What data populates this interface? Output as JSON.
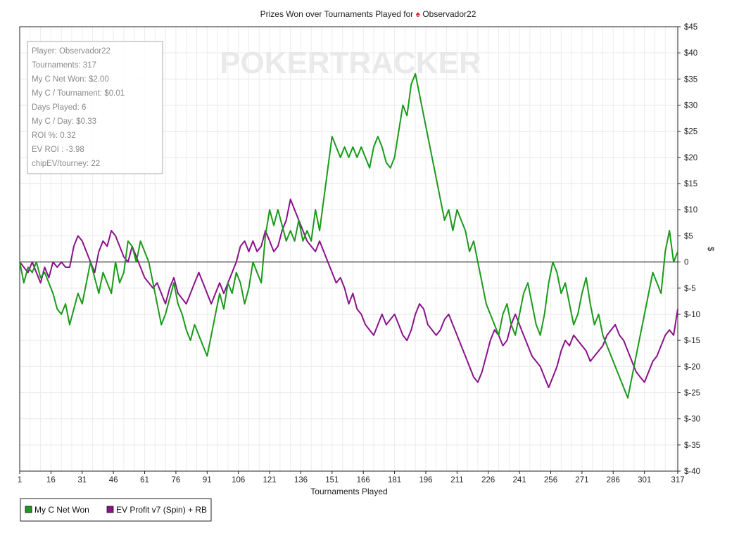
{
  "chart_data": {
    "type": "line",
    "title": "Prizes Won over Tournaments Played for ",
    "title_player": "Observador22",
    "xlabel": "Tournaments Played",
    "ylabel": "$",
    "xlim": [
      1,
      317
    ],
    "ylim": [
      -40,
      45
    ],
    "x_ticks": [
      "1",
      "16",
      "31",
      "46",
      "61",
      "76",
      "91",
      "106",
      "121",
      "136",
      "151",
      "166",
      "181",
      "196",
      "211",
      "226",
      "241",
      "256",
      "271",
      "286",
      "301",
      "317"
    ],
    "y_ticks": [
      "$45",
      "$40",
      "$35",
      "$30",
      "$25",
      "$20",
      "$15",
      "$10",
      "$5",
      "0",
      "$-5",
      "$-10",
      "$-15",
      "$-20",
      "$-25",
      "$-30",
      "$-35",
      "$-40"
    ],
    "grid": true,
    "legend_position": "bottom-left",
    "watermark": "POKERTRACKER",
    "series": [
      {
        "name": "My C Net Won",
        "color": "#1a9a1a",
        "points": [
          [
            1,
            0
          ],
          [
            3,
            -4
          ],
          [
            5,
            -1
          ],
          [
            7,
            -2
          ],
          [
            9,
            0
          ],
          [
            11,
            -3
          ],
          [
            13,
            -2
          ],
          [
            15,
            -4
          ],
          [
            17,
            -6
          ],
          [
            19,
            -9
          ],
          [
            21,
            -10
          ],
          [
            23,
            -8
          ],
          [
            25,
            -12
          ],
          [
            27,
            -9
          ],
          [
            29,
            -6
          ],
          [
            31,
            -8
          ],
          [
            33,
            -4
          ],
          [
            35,
            0
          ],
          [
            37,
            -3
          ],
          [
            39,
            -6
          ],
          [
            41,
            -2
          ],
          [
            43,
            -4
          ],
          [
            45,
            -6
          ],
          [
            47,
            0
          ],
          [
            49,
            -4
          ],
          [
            51,
            -2
          ],
          [
            53,
            4
          ],
          [
            55,
            3
          ],
          [
            57,
            0
          ],
          [
            59,
            4
          ],
          [
            61,
            2
          ],
          [
            63,
            0
          ],
          [
            65,
            -4
          ],
          [
            67,
            -8
          ],
          [
            69,
            -12
          ],
          [
            71,
            -10
          ],
          [
            73,
            -7
          ],
          [
            75,
            -4
          ],
          [
            77,
            -8
          ],
          [
            79,
            -10
          ],
          [
            81,
            -13
          ],
          [
            83,
            -15
          ],
          [
            85,
            -12
          ],
          [
            87,
            -14
          ],
          [
            89,
            -16
          ],
          [
            91,
            -18
          ],
          [
            93,
            -14
          ],
          [
            95,
            -10
          ],
          [
            97,
            -6
          ],
          [
            99,
            -9
          ],
          [
            101,
            -4
          ],
          [
            103,
            -6
          ],
          [
            105,
            -2
          ],
          [
            107,
            -4
          ],
          [
            109,
            -8
          ],
          [
            111,
            -5
          ],
          [
            113,
            0
          ],
          [
            115,
            -2
          ],
          [
            117,
            -4
          ],
          [
            119,
            5
          ],
          [
            121,
            10
          ],
          [
            123,
            7
          ],
          [
            125,
            10
          ],
          [
            127,
            7
          ],
          [
            129,
            4
          ],
          [
            131,
            6
          ],
          [
            133,
            4
          ],
          [
            135,
            8
          ],
          [
            137,
            4
          ],
          [
            139,
            6
          ],
          [
            141,
            4
          ],
          [
            143,
            10
          ],
          [
            145,
            6
          ],
          [
            147,
            12
          ],
          [
            149,
            18
          ],
          [
            151,
            24
          ],
          [
            153,
            22
          ],
          [
            155,
            20
          ],
          [
            157,
            22
          ],
          [
            159,
            20
          ],
          [
            161,
            22
          ],
          [
            163,
            20
          ],
          [
            165,
            22
          ],
          [
            167,
            20
          ],
          [
            169,
            18
          ],
          [
            171,
            22
          ],
          [
            173,
            24
          ],
          [
            175,
            22
          ],
          [
            177,
            19
          ],
          [
            179,
            18
          ],
          [
            181,
            20
          ],
          [
            183,
            25
          ],
          [
            185,
            30
          ],
          [
            187,
            28
          ],
          [
            189,
            34
          ],
          [
            191,
            36
          ],
          [
            193,
            32
          ],
          [
            195,
            28
          ],
          [
            197,
            24
          ],
          [
            199,
            20
          ],
          [
            201,
            16
          ],
          [
            203,
            12
          ],
          [
            205,
            8
          ],
          [
            207,
            10
          ],
          [
            209,
            6
          ],
          [
            211,
            10
          ],
          [
            213,
            8
          ],
          [
            215,
            6
          ],
          [
            217,
            2
          ],
          [
            219,
            4
          ],
          [
            221,
            0
          ],
          [
            223,
            -4
          ],
          [
            225,
            -8
          ],
          [
            227,
            -10
          ],
          [
            229,
            -12
          ],
          [
            231,
            -14
          ],
          [
            233,
            -10
          ],
          [
            235,
            -8
          ],
          [
            237,
            -12
          ],
          [
            239,
            -14
          ],
          [
            241,
            -10
          ],
          [
            243,
            -6
          ],
          [
            245,
            -4
          ],
          [
            247,
            -8
          ],
          [
            249,
            -12
          ],
          [
            251,
            -14
          ],
          [
            253,
            -10
          ],
          [
            255,
            -4
          ],
          [
            257,
            0
          ],
          [
            259,
            -2
          ],
          [
            261,
            -6
          ],
          [
            263,
            -4
          ],
          [
            265,
            -8
          ],
          [
            267,
            -12
          ],
          [
            269,
            -10
          ],
          [
            271,
            -6
          ],
          [
            273,
            -3
          ],
          [
            275,
            -8
          ],
          [
            277,
            -12
          ],
          [
            279,
            -10
          ],
          [
            281,
            -14
          ],
          [
            283,
            -16
          ],
          [
            285,
            -18
          ],
          [
            287,
            -20
          ],
          [
            289,
            -22
          ],
          [
            291,
            -24
          ],
          [
            293,
            -26
          ],
          [
            295,
            -22
          ],
          [
            297,
            -18
          ],
          [
            299,
            -14
          ],
          [
            301,
            -10
          ],
          [
            303,
            -6
          ],
          [
            305,
            -2
          ],
          [
            307,
            -4
          ],
          [
            309,
            -6
          ],
          [
            311,
            2
          ],
          [
            313,
            6
          ],
          [
            315,
            0
          ],
          [
            317,
            2
          ]
        ]
      },
      {
        "name": "EV Profit v7 (Spin) + RB",
        "color": "#8a128a",
        "points": [
          [
            1,
            0
          ],
          [
            3,
            -1
          ],
          [
            5,
            -2
          ],
          [
            7,
            0
          ],
          [
            9,
            -2
          ],
          [
            11,
            -4
          ],
          [
            13,
            -1
          ],
          [
            15,
            -3
          ],
          [
            17,
            0
          ],
          [
            19,
            -1
          ],
          [
            21,
            0
          ],
          [
            23,
            -1
          ],
          [
            25,
            -1
          ],
          [
            27,
            3
          ],
          [
            29,
            5
          ],
          [
            31,
            4
          ],
          [
            33,
            2
          ],
          [
            35,
            0
          ],
          [
            37,
            -2
          ],
          [
            39,
            2
          ],
          [
            41,
            4
          ],
          [
            43,
            3
          ],
          [
            45,
            6
          ],
          [
            47,
            5
          ],
          [
            49,
            3
          ],
          [
            51,
            1
          ],
          [
            53,
            0
          ],
          [
            55,
            3
          ],
          [
            57,
            1
          ],
          [
            59,
            -1
          ],
          [
            61,
            -3
          ],
          [
            63,
            -4
          ],
          [
            65,
            -5
          ],
          [
            67,
            -4
          ],
          [
            69,
            -6
          ],
          [
            71,
            -8
          ],
          [
            73,
            -5
          ],
          [
            75,
            -3
          ],
          [
            77,
            -6
          ],
          [
            79,
            -7
          ],
          [
            81,
            -8
          ],
          [
            83,
            -6
          ],
          [
            85,
            -4
          ],
          [
            87,
            -2
          ],
          [
            89,
            -4
          ],
          [
            91,
            -6
          ],
          [
            93,
            -8
          ],
          [
            95,
            -6
          ],
          [
            97,
            -4
          ],
          [
            99,
            -6
          ],
          [
            101,
            -4
          ],
          [
            103,
            -2
          ],
          [
            105,
            0
          ],
          [
            107,
            3
          ],
          [
            109,
            4
          ],
          [
            111,
            2
          ],
          [
            113,
            4
          ],
          [
            115,
            2
          ],
          [
            117,
            3
          ],
          [
            119,
            6
          ],
          [
            121,
            4
          ],
          [
            123,
            2
          ],
          [
            125,
            3
          ],
          [
            127,
            6
          ],
          [
            129,
            8
          ],
          [
            131,
            12
          ],
          [
            133,
            10
          ],
          [
            135,
            8
          ],
          [
            137,
            6
          ],
          [
            139,
            4
          ],
          [
            141,
            3
          ],
          [
            143,
            2
          ],
          [
            145,
            4
          ],
          [
            147,
            2
          ],
          [
            149,
            0
          ],
          [
            151,
            -2
          ],
          [
            153,
            -4
          ],
          [
            155,
            -3
          ],
          [
            157,
            -5
          ],
          [
            159,
            -8
          ],
          [
            161,
            -6
          ],
          [
            163,
            -9
          ],
          [
            165,
            -10
          ],
          [
            167,
            -12
          ],
          [
            169,
            -13
          ],
          [
            171,
            -14
          ],
          [
            173,
            -12
          ],
          [
            175,
            -10
          ],
          [
            177,
            -12
          ],
          [
            179,
            -11
          ],
          [
            181,
            -10
          ],
          [
            183,
            -12
          ],
          [
            185,
            -14
          ],
          [
            187,
            -15
          ],
          [
            189,
            -13
          ],
          [
            191,
            -10
          ],
          [
            193,
            -8
          ],
          [
            195,
            -9
          ],
          [
            197,
            -12
          ],
          [
            199,
            -13
          ],
          [
            201,
            -14
          ],
          [
            203,
            -13
          ],
          [
            205,
            -11
          ],
          [
            207,
            -10
          ],
          [
            209,
            -12
          ],
          [
            211,
            -14
          ],
          [
            213,
            -16
          ],
          [
            215,
            -18
          ],
          [
            217,
            -20
          ],
          [
            219,
            -22
          ],
          [
            221,
            -23
          ],
          [
            223,
            -21
          ],
          [
            225,
            -18
          ],
          [
            227,
            -15
          ],
          [
            229,
            -13
          ],
          [
            231,
            -14
          ],
          [
            233,
            -16
          ],
          [
            235,
            -15
          ],
          [
            237,
            -12
          ],
          [
            239,
            -10
          ],
          [
            241,
            -12
          ],
          [
            243,
            -14
          ],
          [
            245,
            -16
          ],
          [
            247,
            -18
          ],
          [
            249,
            -19
          ],
          [
            251,
            -20
          ],
          [
            253,
            -22
          ],
          [
            255,
            -24
          ],
          [
            257,
            -22
          ],
          [
            259,
            -20
          ],
          [
            261,
            -17
          ],
          [
            263,
            -15
          ],
          [
            265,
            -16
          ],
          [
            267,
            -14
          ],
          [
            269,
            -15
          ],
          [
            271,
            -16
          ],
          [
            273,
            -17
          ],
          [
            275,
            -19
          ],
          [
            277,
            -18
          ],
          [
            279,
            -17
          ],
          [
            281,
            -16
          ],
          [
            283,
            -14
          ],
          [
            285,
            -13
          ],
          [
            287,
            -12
          ],
          [
            289,
            -14
          ],
          [
            291,
            -15
          ],
          [
            293,
            -17
          ],
          [
            295,
            -19
          ],
          [
            297,
            -21
          ],
          [
            299,
            -22
          ],
          [
            301,
            -23
          ],
          [
            303,
            -21
          ],
          [
            305,
            -19
          ],
          [
            307,
            -18
          ],
          [
            309,
            -16
          ],
          [
            311,
            -14
          ],
          [
            313,
            -13
          ],
          [
            315,
            -14
          ],
          [
            317,
            -9
          ]
        ]
      }
    ]
  },
  "info_box": {
    "lines": [
      "Player: Observador22",
      "Tournaments: 317",
      "My C Net Won: $2.00",
      "My C / Tournament: $0.01",
      "Days Played: 6",
      "My C / Day: $0.33",
      "ROI %: 0.32",
      "EV ROI : -3.98",
      "chipEV/tourney: 22"
    ]
  },
  "legend": {
    "items": [
      {
        "label": "My C Net Won",
        "color": "#1a9a1a"
      },
      {
        "label": "EV Profit v7 (Spin) + RB",
        "color": "#8a128a"
      }
    ]
  }
}
